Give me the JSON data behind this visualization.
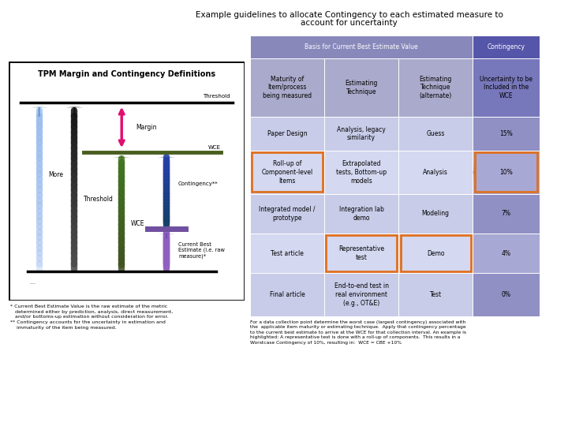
{
  "title_line1": "Example guidelines to allocate Contingency to each estimated measure to",
  "title_line2": "account for uncertainty",
  "title_fontsize": 7.5,
  "background_color": "#ffffff",
  "left_panel": {
    "title": "TPM Margin and Contingency Definitions",
    "title_fontsize": 7.0,
    "threshold_label": "Threshold",
    "wce_label": "WCE",
    "margin_label": "Margin",
    "contingency_label": "Contingency**",
    "more_label": "More",
    "threshold2_label": "Threshold",
    "wce2_label": "WCE",
    "cbe_label": "Current Best\nEstimate (i.e. raw\nmeasure)*",
    "footnote1": "* Current Best Estimate Value is the raw estimate of the metric\n   determined either by prediction, analysis, direct measurement,\n   and/or bottoms-up estimation without consideration for error.\n** Contingency accounts for the uncertainty in estimation and\n    immaturity of the item being measured."
  },
  "table": {
    "col_headers_bg": "#8888bb",
    "col_headers_text": "#ffffff",
    "contingency_header_bg": "#5555aa",
    "contingency_header_text": "#ffffff",
    "subhdr_bg": [
      "#aaaacc",
      "#aaaacc",
      "#aaaacc"
    ],
    "subhdr_cont_bg": "#7777bb",
    "subhdr_text": "#000000",
    "row_even_bg": "#c8cce8",
    "row_odd_bg": "#d4d8f0",
    "cont_even_bg": "#9090c4",
    "cont_odd_bg": "#a8a8d4",
    "orange_border": "#e07020",
    "arrow_color": "#c07830",
    "col_headers": [
      "Basis for Current Best Estimate Value",
      "Contingency"
    ],
    "sub_headers": [
      "Maturity of\nItem/process\nbeing measured",
      "Estimating\nTechnique",
      "Estimating\nTechnique\n(alternate)",
      "Uncertainty to be\nIncluded in the\nWCE"
    ],
    "rows": [
      [
        "Paper Design",
        "Analysis, legacy\nsimilarity",
        "Guess",
        "15%"
      ],
      [
        "Roll-up of\nComponent-level\nItems",
        "Extrapolated\ntests, Bottom-up\nmodels",
        "Analysis",
        "10%"
      ],
      [
        "Integrated model /\nprototype",
        "Integration lab\ndemo",
        "Modeling",
        "7%"
      ],
      [
        "Test article",
        "Representative\ntest",
        "Demo",
        "4%"
      ],
      [
        "Final article",
        "End-to-end test in\nreal environment\n(e.g., OT&E)",
        "Test",
        "0%"
      ]
    ],
    "highlight_row": 1,
    "representative_row": 3,
    "footer_text": "For a data collection point determine the worst case (largest contingency) associated with\nthe  applicable item maturity or estimating technique.  Apply that contingency percentage\nto the current best estimate to arrive at the WCE for that collection interval. An example is\nhighlighted: A representative test is done with a roll-up of components.  This results in a\nWorstcase Contingency of 10%, resulting in:  WCE = CBE +10%"
  }
}
